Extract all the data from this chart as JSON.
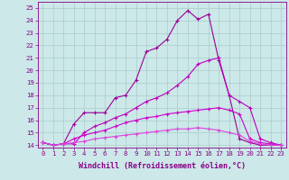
{
  "xlabel": "Windchill (Refroidissement éolien,°C)",
  "x_values": [
    0,
    1,
    2,
    3,
    4,
    5,
    6,
    7,
    8,
    9,
    10,
    11,
    12,
    13,
    14,
    15,
    16,
    17,
    18,
    19,
    20,
    21,
    22,
    23
  ],
  "lines": [
    {
      "y": [
        14.2,
        14.0,
        14.1,
        15.7,
        16.6,
        16.6,
        16.6,
        17.8,
        18.0,
        19.2,
        21.5,
        21.8,
        22.5,
        24.0,
        24.8,
        24.1,
        24.5,
        20.8,
        18.0,
        14.5,
        14.2,
        14.0,
        14.0,
        14.0
      ],
      "color": "#990099"
    },
    {
      "y": [
        14.2,
        14.0,
        14.1,
        14.1,
        15.0,
        15.5,
        15.8,
        16.2,
        16.5,
        17.0,
        17.5,
        17.8,
        18.2,
        18.8,
        19.5,
        20.5,
        20.8,
        21.0,
        18.0,
        17.5,
        17.0,
        14.5,
        14.2,
        14.0
      ],
      "color": "#bb00bb"
    },
    {
      "y": [
        14.2,
        14.0,
        14.1,
        14.5,
        14.8,
        15.0,
        15.2,
        15.5,
        15.8,
        16.0,
        16.2,
        16.3,
        16.5,
        16.6,
        16.7,
        16.8,
        16.9,
        17.0,
        16.8,
        16.5,
        14.5,
        14.2,
        14.1,
        14.0
      ],
      "color": "#cc00cc"
    },
    {
      "y": [
        14.2,
        14.0,
        14.1,
        14.2,
        14.3,
        14.5,
        14.6,
        14.7,
        14.8,
        14.9,
        15.0,
        15.1,
        15.2,
        15.3,
        15.3,
        15.4,
        15.3,
        15.2,
        15.0,
        14.8,
        14.3,
        14.1,
        14.0,
        14.0
      ],
      "color": "#dd44dd"
    }
  ],
  "ylim": [
    13.8,
    25.5
  ],
  "xlim": [
    -0.5,
    23.5
  ],
  "yticks": [
    14,
    15,
    16,
    17,
    18,
    19,
    20,
    21,
    22,
    23,
    24,
    25
  ],
  "xticks": [
    0,
    1,
    2,
    3,
    4,
    5,
    6,
    7,
    8,
    9,
    10,
    11,
    12,
    13,
    14,
    15,
    16,
    17,
    18,
    19,
    20,
    21,
    22,
    23
  ],
  "bg_color": "#cce8e8",
  "grid_color": "#aacccc",
  "spine_color": "#880088",
  "axis_color": "#880088",
  "tick_fontsize": 5.2,
  "label_fontsize": 6.0
}
